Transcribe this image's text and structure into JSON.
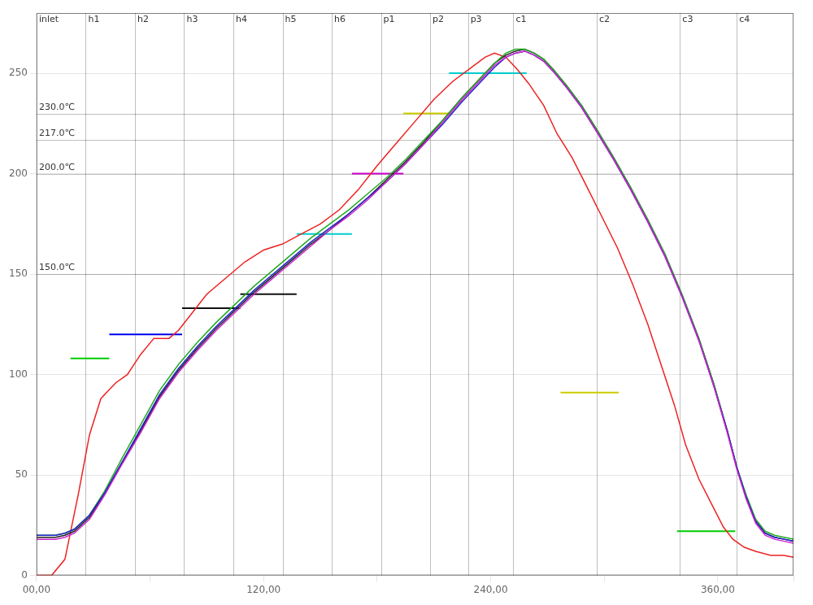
{
  "chart_data": {
    "type": "line",
    "xlim": [
      0,
      400
    ],
    "xticks": [
      {
        "value": 0,
        "label": "00,00"
      },
      {
        "value": 60,
        "label": null
      },
      {
        "value": 120,
        "label": "120,00"
      },
      {
        "value": 180,
        "label": null
      },
      {
        "value": 240,
        "label": "240,00"
      },
      {
        "value": 300,
        "label": null
      },
      {
        "value": 360,
        "label": "360,00"
      },
      {
        "value": 400,
        "label": null
      }
    ],
    "ylim": [
      0,
      280
    ],
    "yticks": [
      0,
      50,
      100,
      150,
      200,
      250
    ],
    "grid": true,
    "zone_dividers": [
      26,
      52,
      78,
      104,
      130,
      156,
      182,
      208,
      228,
      252,
      296,
      340,
      370
    ],
    "zone_labels": [
      "inlet",
      "h1",
      "h2",
      "h3",
      "h4",
      "h5",
      "h6",
      "p1",
      "p2",
      "p3",
      "c1",
      "c2",
      "c3",
      "c4"
    ],
    "ref_lines": [
      {
        "y": 150,
        "label": "150.0℃"
      },
      {
        "y": 200,
        "label": "200.0℃"
      },
      {
        "y": 217,
        "label": "217.0℃"
      },
      {
        "y": 230,
        "label": "230.0℃"
      }
    ],
    "step_lines": [
      {
        "x": [
          17.94871794871795,
          38.46153846153846
        ],
        "y": 108,
        "color": "#00cc00"
      },
      {
        "x": [
          38.46153846153846,
          76.92307692307692
        ],
        "y": 120,
        "color": "#0000ee"
      },
      {
        "x": [
          76.92307692307692,
          107.6923076923077
        ],
        "y": 133,
        "color": "#111111"
      },
      {
        "x": [
          107.6923076923077,
          137.43589743589743
        ],
        "y": 140,
        "color": "#111111"
      },
      {
        "x": [
          137.43589743589743,
          166.66666666666666
        ],
        "y": 170,
        "color": "#00cccc"
      },
      {
        "x": [
          166.66666666666666,
          193.84615384615384
        ],
        "y": 200,
        "color": "#cc00cc"
      },
      {
        "x": [
          193.84615384615384,
          217.94871794871796
        ],
        "y": 230,
        "color": "#cccc00"
      },
      {
        "x": [
          217.94871794871796,
          258.97435897435895
        ],
        "y": 250,
        "color": "#00cccc"
      },
      {
        "x": [
          276.9230769230769,
          307.6923076923077
        ],
        "y": 91,
        "color": "#cccc00"
      },
      {
        "x": [
          338.46153846153845,
          369.2307692307692
        ],
        "y": 22,
        "color": "#00cc00"
      }
    ],
    "series": [
      {
        "color": "#cc22cc",
        "x": [
          0,
          10,
          15,
          20,
          28,
          36,
          45,
          55,
          65,
          75,
          85,
          95,
          105,
          115,
          125,
          135,
          145,
          155,
          165,
          175,
          185,
          195,
          205,
          215,
          225,
          235,
          242,
          248,
          253,
          258,
          263,
          268,
          273,
          280,
          288,
          296,
          305,
          314,
          323,
          332,
          341,
          350,
          358,
          365,
          370,
          375,
          380,
          385,
          390,
          395,
          400
        ],
        "values": [
          18,
          18,
          19,
          21,
          28,
          40,
          55,
          71,
          88,
          101,
          112,
          122,
          131,
          140,
          148,
          156,
          164,
          172,
          179,
          187,
          196,
          205,
          215,
          226,
          237,
          247,
          254,
          258,
          260,
          261,
          259,
          256,
          251,
          243,
          233,
          221,
          207,
          192,
          176,
          159,
          139,
          117,
          94,
          71,
          53,
          38,
          26,
          20,
          18,
          17,
          16
        ]
      },
      {
        "color": "#2222cc",
        "x": [
          0,
          10,
          15,
          20,
          28,
          36,
          45,
          55,
          65,
          75,
          85,
          95,
          105,
          115,
          125,
          135,
          145,
          155,
          165,
          175,
          185,
          195,
          205,
          215,
          225,
          235,
          242,
          248,
          253,
          258,
          263,
          268,
          273,
          280,
          288,
          296,
          305,
          314,
          323,
          332,
          341,
          350,
          358,
          365,
          370,
          375,
          380,
          385,
          390,
          395,
          400
        ],
        "values": [
          20,
          20,
          21,
          23,
          30,
          41,
          56,
          73,
          90,
          103,
          114,
          124,
          133,
          142,
          150,
          158,
          166,
          173,
          180,
          188,
          196,
          205,
          215,
          225,
          236,
          246,
          253,
          258,
          260,
          261,
          259,
          256,
          251,
          243,
          233,
          221,
          207,
          192,
          176,
          159,
          139,
          117,
          94,
          72,
          54,
          39,
          27,
          21,
          19,
          18,
          17
        ]
      },
      {
        "color": "#22aa22",
        "x": [
          0,
          10,
          15,
          20,
          28,
          36,
          45,
          55,
          65,
          75,
          85,
          95,
          105,
          115,
          125,
          135,
          145,
          155,
          165,
          175,
          185,
          195,
          205,
          215,
          225,
          235,
          242,
          248,
          253,
          258,
          263,
          268,
          273,
          280,
          288,
          296,
          305,
          314,
          323,
          332,
          341,
          350,
          358,
          365,
          370,
          375,
          380,
          385,
          390,
          395,
          400
        ],
        "values": [
          20,
          20,
          21,
          23,
          30,
          42,
          58,
          75,
          92,
          105,
          116,
          126,
          135,
          144,
          152,
          160,
          168,
          175,
          182,
          190,
          198,
          207,
          217,
          227,
          238,
          248,
          255,
          260,
          262,
          262,
          260,
          257,
          252,
          244,
          234,
          222,
          208,
          193,
          177,
          160,
          140,
          118,
          95,
          72,
          54,
          40,
          28,
          22,
          20,
          19,
          18
        ]
      },
      {
        "color": "#222222",
        "x": [
          0,
          10,
          15,
          20,
          28,
          36,
          45,
          55,
          65,
          75,
          85,
          95,
          105,
          115,
          125,
          135,
          145,
          155,
          165,
          175,
          185,
          195,
          205,
          215,
          225,
          235,
          242,
          248,
          253,
          258,
          263,
          268,
          273,
          280,
          288,
          296,
          305,
          314,
          323,
          332,
          341,
          350,
          358,
          365,
          370,
          375,
          380,
          385,
          390,
          395,
          400
        ],
        "values": [
          19,
          19,
          20,
          22,
          29,
          41,
          56,
          72,
          89,
          102,
          113,
          123,
          132,
          141,
          149,
          157,
          165,
          172,
          180,
          188,
          197,
          206,
          216,
          227,
          238,
          248,
          255,
          259,
          261,
          262,
          260,
          257,
          252,
          244,
          234,
          222,
          208,
          193,
          177,
          160,
          140,
          118,
          95,
          72,
          54,
          39,
          27,
          21,
          19,
          18,
          17
        ]
      },
      {
        "color": "#ee2222",
        "x": [
          0,
          2,
          8,
          15,
          22,
          28,
          34,
          38,
          42,
          48,
          55,
          62,
          70,
          75,
          80,
          90,
          100,
          110,
          120,
          130,
          140,
          150,
          160,
          170,
          180,
          190,
          200,
          210,
          220,
          230,
          237,
          242,
          248,
          254,
          260,
          268,
          275,
          283,
          290,
          298,
          307,
          315,
          323,
          330,
          337,
          343,
          350,
          357,
          363,
          368,
          374,
          380,
          388,
          395,
          400
        ],
        "values": [
          0,
          0,
          0,
          8,
          40,
          70,
          88,
          92,
          96,
          100,
          110,
          118,
          118,
          122,
          128,
          140,
          148,
          156,
          162,
          165,
          170,
          175,
          182,
          192,
          204,
          215,
          226,
          237,
          246,
          253,
          258,
          260,
          258,
          252,
          245,
          234,
          220,
          208,
          195,
          180,
          163,
          145,
          125,
          105,
          85,
          65,
          48,
          35,
          24,
          18,
          14,
          12,
          10,
          10,
          9
        ]
      }
    ]
  }
}
